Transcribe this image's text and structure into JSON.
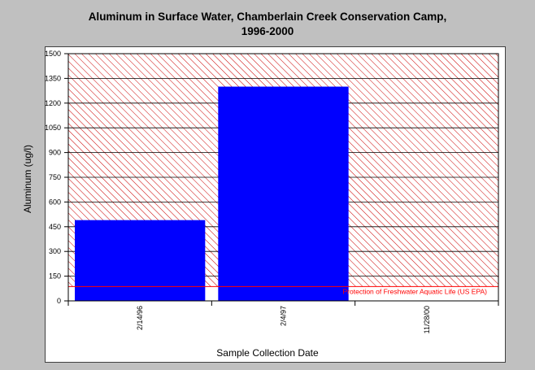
{
  "title_lines": [
    "Aluminum in Surface Water, Chamberlain Creek Conservation Camp,",
    "1996-2000"
  ],
  "colors": {
    "background": "#c0c0c0",
    "bar": "#0000ff",
    "hatch": "#cc0000",
    "reference_line": "#ff0000"
  },
  "chart_data": {
    "type": "bar",
    "title": "Aluminum in Surface Water, Chamberlain Creek Conservation Camp, 1996-2000",
    "xlabel": "Sample Collection Date",
    "ylabel": "Aluminum (ug/l)",
    "categories": [
      "2/14/96",
      "2/4/97",
      "11/28/00"
    ],
    "values": [
      490,
      1300,
      0
    ],
    "ylim": [
      0,
      1500
    ],
    "yticks": [
      0,
      150,
      300,
      450,
      600,
      750,
      900,
      1050,
      1200,
      1350,
      1500
    ],
    "grid": true,
    "reference_line": {
      "value": 87,
      "label": "Protection of Freshwater Aquatic Life (US EPA)",
      "region_above_hatched": true
    }
  }
}
